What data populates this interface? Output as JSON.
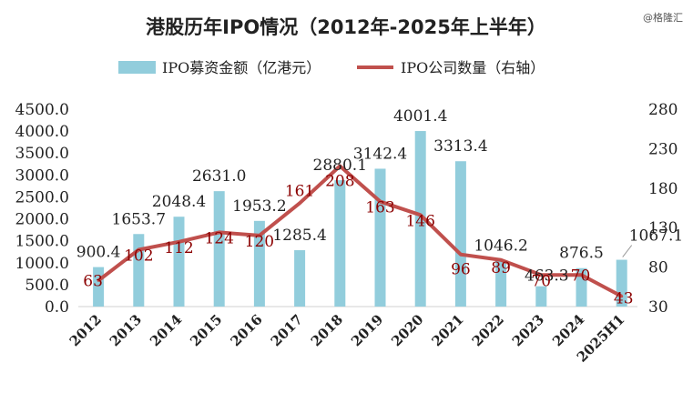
{
  "watermark": "@格隆汇",
  "chart_data": {
    "type": "bar+line",
    "title": "港股历年IPO情况（2012年-2025年上半年）",
    "categories": [
      "2012",
      "2013",
      "2014",
      "2015",
      "2016",
      "2017",
      "2018",
      "2019",
      "2020",
      "2021",
      "2022",
      "2023",
      "2024",
      "2025H1"
    ],
    "series": [
      {
        "name": "IPO募资金额（亿港元）",
        "type": "bar",
        "axis": "left",
        "color": "#92CDDC",
        "values": [
          900.4,
          1653.7,
          2048.4,
          2631.0,
          1953.2,
          1285.4,
          2880.1,
          3142.4,
          4001.4,
          3313.4,
          1046.2,
          463.3,
          876.5,
          1067.1
        ]
      },
      {
        "name": "IPO公司数量（右轴）",
        "type": "line",
        "axis": "right",
        "color": "#C0504D",
        "values": [
          63,
          102,
          112,
          124,
          120,
          161,
          208,
          163,
          146,
          96,
          89,
          70,
          70,
          43
        ]
      }
    ],
    "bar_labels": [
      "900.4",
      "1653.7",
      "2048.4",
      "2631.0",
      "1953.2",
      "1285.4",
      "2880.1",
      "3142.4",
      "4001.4",
      "3313.4",
      "1046.2",
      "463.3",
      "876.5",
      "1067.1"
    ],
    "line_labels": [
      "63",
      "102",
      "112",
      "124",
      "120",
      "161",
      "208",
      "163",
      "146",
      "96",
      "89",
      "70",
      "70",
      "43"
    ],
    "y_left": {
      "min": 0,
      "max": 4500,
      "ticks": [
        "0.0",
        "500.0",
        "1000.0",
        "1500.0",
        "2000.0",
        "2500.0",
        "3000.0",
        "3500.0",
        "4000.0",
        "4500.0"
      ]
    },
    "y_right": {
      "min": 30,
      "max": 280,
      "ticks": [
        "30",
        "80",
        "130",
        "180",
        "230",
        "280"
      ]
    },
    "legend_position": "top-center",
    "grid": false
  }
}
